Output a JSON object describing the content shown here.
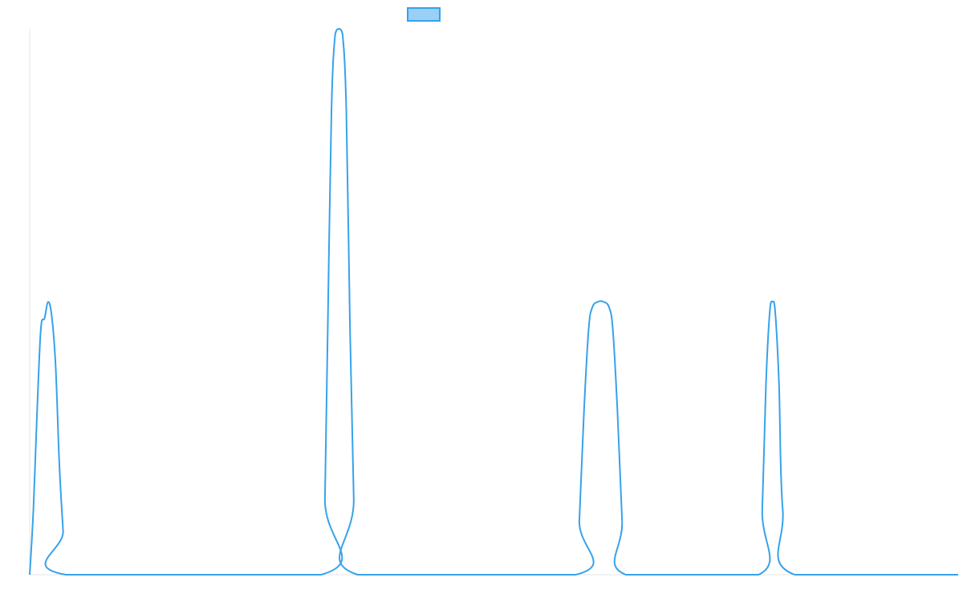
{
  "colors": {
    "line": "#36a2eb",
    "legend_fill": "#9ad0f5",
    "legend_border": "#36a2eb",
    "axis_line": "#e5e5e5",
    "background": "#ffffff"
  },
  "chart_data": {
    "type": "line",
    "title": "",
    "xlabel": "",
    "ylabel": "",
    "legend": {
      "position": "top",
      "entries": [
        {
          "label": ""
        }
      ]
    },
    "grid": false,
    "axes_ticks_shown": false,
    "xlim": [
      0,
      1
    ],
    "ylim": [
      0,
      1
    ],
    "series": [
      {
        "points": [
          [
            0.0,
            0.0
          ],
          [
            0.004,
            0.12
          ],
          [
            0.008,
            0.3
          ],
          [
            0.012,
            0.45
          ],
          [
            0.016,
            0.47
          ],
          [
            0.02,
            0.5
          ],
          [
            0.024,
            0.47
          ],
          [
            0.028,
            0.38
          ],
          [
            0.032,
            0.2
          ],
          [
            0.036,
            0.08
          ],
          [
            0.039,
            0.0
          ],
          [
            0.314,
            0.0
          ],
          [
            0.318,
            0.14
          ],
          [
            0.321,
            0.45
          ],
          [
            0.325,
            0.85
          ],
          [
            0.329,
            0.99
          ],
          [
            0.333,
            1.0
          ],
          [
            0.337,
            0.99
          ],
          [
            0.341,
            0.85
          ],
          [
            0.345,
            0.45
          ],
          [
            0.349,
            0.14
          ],
          [
            0.353,
            0.0
          ],
          [
            0.588,
            0.0
          ],
          [
            0.592,
            0.1
          ],
          [
            0.597,
            0.3
          ],
          [
            0.602,
            0.45
          ],
          [
            0.606,
            0.49
          ],
          [
            0.612,
            0.5
          ],
          [
            0.618,
            0.5
          ],
          [
            0.624,
            0.49
          ],
          [
            0.628,
            0.45
          ],
          [
            0.633,
            0.3
          ],
          [
            0.638,
            0.1
          ],
          [
            0.642,
            0.0
          ],
          [
            0.785,
            0.0
          ],
          [
            0.789,
            0.12
          ],
          [
            0.793,
            0.35
          ],
          [
            0.797,
            0.48
          ],
          [
            0.8,
            0.5
          ],
          [
            0.803,
            0.48
          ],
          [
            0.807,
            0.35
          ],
          [
            0.811,
            0.12
          ],
          [
            0.824,
            0.0
          ],
          [
            1.0,
            0.0
          ]
        ]
      }
    ]
  }
}
